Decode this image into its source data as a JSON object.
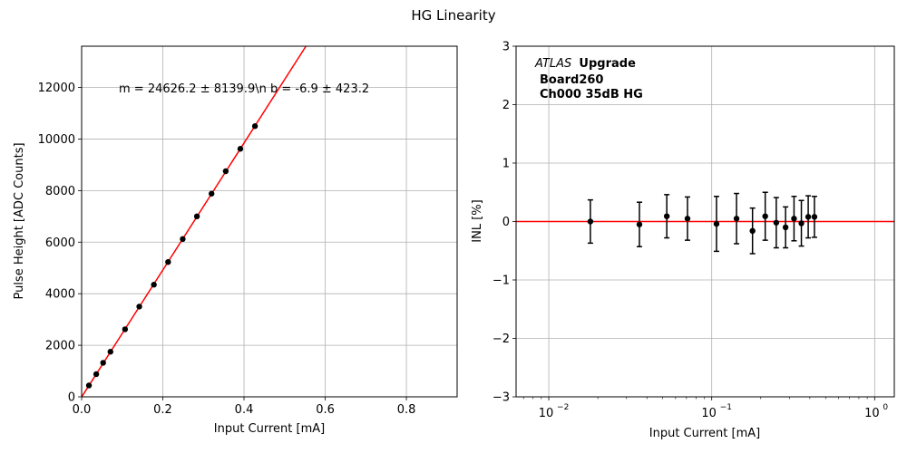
{
  "figure": {
    "title": "HG Linearity"
  },
  "chart_data": [
    {
      "type": "scatter",
      "xlabel": "Input Current [mA]",
      "ylabel": "Pulse Height [ADC Counts]",
      "xlim": [
        0,
        0.925
      ],
      "ylim": [
        0,
        13600
      ],
      "xticks": [
        0.0,
        0.2,
        0.4,
        0.6,
        0.8
      ],
      "xtick_labels": [
        "0.0",
        "0.2",
        "0.4",
        "0.6",
        "0.8"
      ],
      "yticks": [
        0,
        2000,
        4000,
        6000,
        8000,
        10000,
        12000
      ],
      "ytick_labels": [
        "0",
        "2000",
        "4000",
        "6000",
        "8000",
        "10000",
        "12000"
      ],
      "grid": true,
      "fit_line": {
        "slope": 24626.2,
        "intercept": -6.9,
        "color": "#ff0000"
      },
      "annotation": "m = 24626.2 ± 8139.9\\n b = -6.9 ± 423.2",
      "marker_color": "#000000",
      "series": [
        {
          "x": [
            0.018,
            0.036,
            0.053,
            0.071,
            0.107,
            0.142,
            0.178,
            0.213,
            0.249,
            0.284,
            0.32,
            0.355,
            0.391,
            0.427
          ],
          "y": [
            440,
            880,
            1320,
            1750,
            2620,
            3500,
            4350,
            5230,
            6120,
            7000,
            7880,
            8750,
            9620,
            10500
          ]
        }
      ]
    },
    {
      "type": "scatter",
      "xlabel": "Input Current [mA]",
      "ylabel": "INL [%]",
      "xscale": "log",
      "xlim": [
        0.0063,
        1.32
      ],
      "ylim": [
        -3,
        3
      ],
      "xticks": [
        0.01,
        0.1,
        1
      ],
      "xtick_labels": [
        "10",
        "10",
        "10"
      ],
      "xtick_exponents": [
        "−2",
        "−1",
        "0"
      ],
      "yticks": [
        -3,
        -2,
        -1,
        0,
        1,
        2,
        3
      ],
      "ytick_labels": [
        "−3",
        "−2",
        "−1",
        "0",
        "1",
        "2",
        "3"
      ],
      "grid": true,
      "reference_line": {
        "y": 0,
        "color": "#ff0000"
      },
      "annotation": {
        "italic": "ATLAS",
        "bold": "Upgrade",
        "line2": "Board260",
        "line3": "Ch000 35dB HG"
      },
      "marker_color": "#000000",
      "series": [
        {
          "x": [
            0.018,
            0.036,
            0.053,
            0.071,
            0.107,
            0.142,
            0.178,
            0.213,
            0.249,
            0.284,
            0.32,
            0.355,
            0.391,
            0.427
          ],
          "y": [
            0.0,
            -0.05,
            0.09,
            0.05,
            -0.04,
            0.05,
            -0.16,
            0.09,
            -0.02,
            -0.1,
            0.05,
            -0.03,
            0.08,
            0.08
          ],
          "err": [
            0.37,
            0.38,
            0.37,
            0.37,
            0.47,
            0.43,
            0.39,
            0.41,
            0.43,
            0.35,
            0.38,
            0.39,
            0.36,
            0.35
          ]
        }
      ]
    }
  ]
}
